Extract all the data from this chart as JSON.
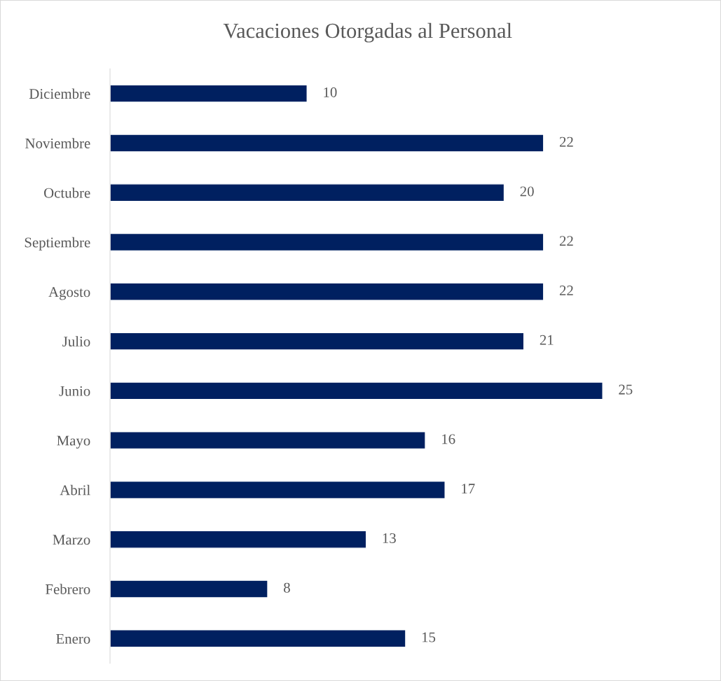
{
  "chart_data": {
    "type": "bar",
    "orientation": "horizontal",
    "title": "Vacaciones Otorgadas al Personal",
    "categories": [
      "Diciembre",
      "Noviembre",
      "Octubre",
      "Septiembre",
      "Agosto",
      "Julio",
      "Junio",
      "Mayo",
      "Abril",
      "Marzo",
      "Febrero",
      "Enero"
    ],
    "values": [
      10,
      22,
      20,
      22,
      22,
      21,
      25,
      16,
      17,
      13,
      8,
      15
    ],
    "color": "#002060",
    "data_labels": true,
    "grid": false,
    "legend": false,
    "tick_labels": "y"
  }
}
